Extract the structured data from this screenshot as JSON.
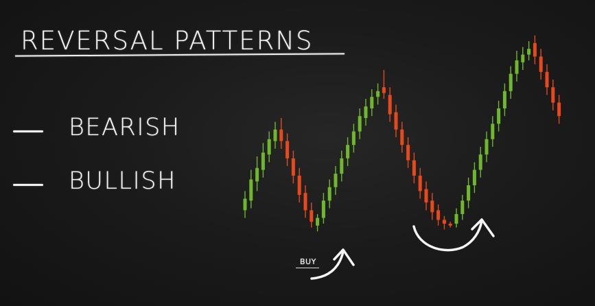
{
  "title": "REVERSAL PATTERNS",
  "items": [
    {
      "label": "BEARISH"
    },
    {
      "label": "BULLISH"
    }
  ],
  "buy_label": "BUY",
  "colors": {
    "bullish": "#6fb82c",
    "bearish": "#e8491c",
    "chalk": "#f4f4f4",
    "background": "#1b1b1b"
  },
  "chart_data": {
    "type": "candlestick",
    "title": "",
    "xlabel": "",
    "ylabel": "",
    "ylim": [
      0,
      100
    ],
    "grid": false,
    "note_price_scale": "unlabeled",
    "candles": [
      {
        "o": 12,
        "c": 18,
        "h": 22,
        "l": 8,
        "dir": "up"
      },
      {
        "o": 17,
        "c": 28,
        "h": 33,
        "l": 13,
        "dir": "up"
      },
      {
        "o": 27,
        "c": 34,
        "h": 40,
        "l": 22,
        "dir": "up"
      },
      {
        "o": 33,
        "c": 42,
        "h": 47,
        "l": 29,
        "dir": "up"
      },
      {
        "o": 41,
        "c": 49,
        "h": 53,
        "l": 37,
        "dir": "up"
      },
      {
        "o": 48,
        "c": 54,
        "h": 58,
        "l": 44,
        "dir": "up"
      },
      {
        "o": 54,
        "c": 48,
        "h": 60,
        "l": 44,
        "dir": "down"
      },
      {
        "o": 48,
        "c": 39,
        "h": 52,
        "l": 35,
        "dir": "down"
      },
      {
        "o": 39,
        "c": 30,
        "h": 43,
        "l": 26,
        "dir": "down"
      },
      {
        "o": 30,
        "c": 20,
        "h": 34,
        "l": 16,
        "dir": "down"
      },
      {
        "o": 21,
        "c": 12,
        "h": 25,
        "l": 8,
        "dir": "down"
      },
      {
        "o": 12,
        "c": 6,
        "h": 16,
        "l": 3,
        "dir": "down"
      },
      {
        "o": 4,
        "c": 8,
        "h": 10,
        "l": 1,
        "dir": "up"
      },
      {
        "o": 8,
        "c": 17,
        "h": 21,
        "l": 5,
        "dir": "up"
      },
      {
        "o": 17,
        "c": 24,
        "h": 28,
        "l": 13,
        "dir": "up"
      },
      {
        "o": 24,
        "c": 31,
        "h": 35,
        "l": 20,
        "dir": "up"
      },
      {
        "o": 31,
        "c": 39,
        "h": 43,
        "l": 27,
        "dir": "up"
      },
      {
        "o": 39,
        "c": 46,
        "h": 50,
        "l": 35,
        "dir": "up"
      },
      {
        "o": 46,
        "c": 53,
        "h": 57,
        "l": 42,
        "dir": "up"
      },
      {
        "o": 53,
        "c": 61,
        "h": 65,
        "l": 49,
        "dir": "up"
      },
      {
        "o": 60,
        "c": 66,
        "h": 70,
        "l": 56,
        "dir": "up"
      },
      {
        "o": 65,
        "c": 71,
        "h": 75,
        "l": 61,
        "dir": "up"
      },
      {
        "o": 71,
        "c": 74,
        "h": 78,
        "l": 67,
        "dir": "up"
      },
      {
        "o": 76,
        "c": 73,
        "h": 85,
        "l": 70,
        "dir": "down"
      },
      {
        "o": 72,
        "c": 62,
        "h": 76,
        "l": 58,
        "dir": "down"
      },
      {
        "o": 63,
        "c": 54,
        "h": 67,
        "l": 50,
        "dir": "down"
      },
      {
        "o": 54,
        "c": 46,
        "h": 58,
        "l": 42,
        "dir": "down"
      },
      {
        "o": 46,
        "c": 38,
        "h": 50,
        "l": 34,
        "dir": "down"
      },
      {
        "o": 38,
        "c": 30,
        "h": 42,
        "l": 26,
        "dir": "down"
      },
      {
        "o": 30,
        "c": 22,
        "h": 34,
        "l": 18,
        "dir": "down"
      },
      {
        "o": 23,
        "c": 16,
        "h": 27,
        "l": 12,
        "dir": "down"
      },
      {
        "o": 17,
        "c": 11,
        "h": 21,
        "l": 7,
        "dir": "down"
      },
      {
        "o": 12,
        "c": 7,
        "h": 15,
        "l": 4,
        "dir": "down"
      },
      {
        "o": 7,
        "c": 5,
        "h": 9,
        "l": 2,
        "dir": "down"
      },
      {
        "o": 5,
        "c": 4,
        "h": 6,
        "l": 3,
        "dir": "down"
      },
      {
        "o": 5,
        "c": 10,
        "h": 13,
        "l": 3,
        "dir": "up"
      },
      {
        "o": 10,
        "c": 17,
        "h": 20,
        "l": 7,
        "dir": "up"
      },
      {
        "o": 17,
        "c": 25,
        "h": 29,
        "l": 13,
        "dir": "up"
      },
      {
        "o": 25,
        "c": 33,
        "h": 37,
        "l": 21,
        "dir": "up"
      },
      {
        "o": 33,
        "c": 41,
        "h": 45,
        "l": 29,
        "dir": "up"
      },
      {
        "o": 41,
        "c": 49,
        "h": 53,
        "l": 37,
        "dir": "up"
      },
      {
        "o": 49,
        "c": 57,
        "h": 61,
        "l": 45,
        "dir": "up"
      },
      {
        "o": 57,
        "c": 65,
        "h": 69,
        "l": 53,
        "dir": "up"
      },
      {
        "o": 65,
        "c": 74,
        "h": 78,
        "l": 61,
        "dir": "up"
      },
      {
        "o": 74,
        "c": 83,
        "h": 87,
        "l": 70,
        "dir": "up"
      },
      {
        "o": 83,
        "c": 90,
        "h": 95,
        "l": 79,
        "dir": "up"
      },
      {
        "o": 89,
        "c": 93,
        "h": 97,
        "l": 85,
        "dir": "up"
      },
      {
        "o": 93,
        "c": 96,
        "h": 100,
        "l": 90,
        "dir": "up"
      },
      {
        "o": 99,
        "c": 92,
        "h": 103,
        "l": 88,
        "dir": "down"
      },
      {
        "o": 92,
        "c": 84,
        "h": 96,
        "l": 80,
        "dir": "down"
      },
      {
        "o": 84,
        "c": 76,
        "h": 88,
        "l": 72,
        "dir": "down"
      },
      {
        "o": 76,
        "c": 68,
        "h": 80,
        "l": 64,
        "dir": "down"
      },
      {
        "o": 68,
        "c": 61,
        "h": 72,
        "l": 57,
        "dir": "down"
      }
    ]
  }
}
